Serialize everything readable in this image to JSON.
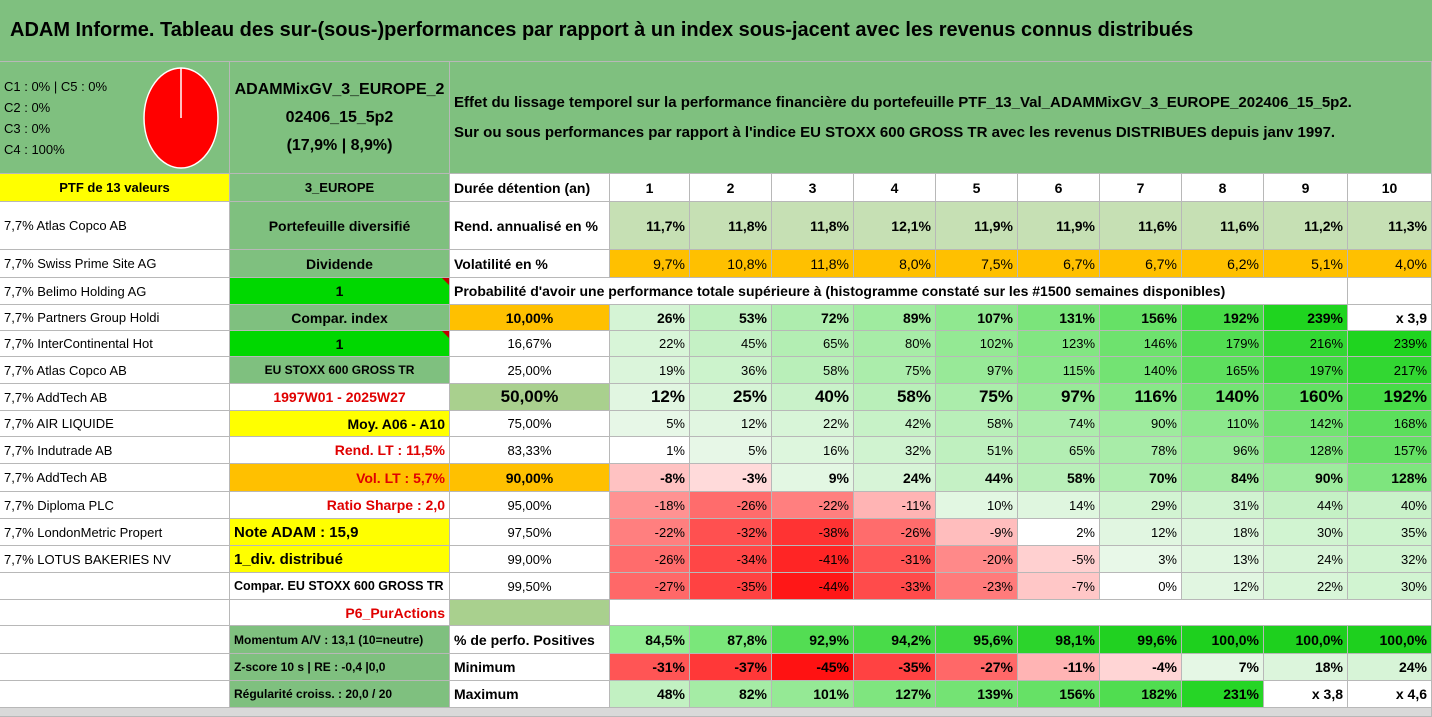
{
  "colors": {
    "green_header": "#7fc07f",
    "yellow": "#ffff00",
    "bright_green": "#00d800",
    "orange": "#ffc000",
    "light_green": "#c6e0b4",
    "pie_red": "#ff0000"
  },
  "title": "ADAM Informe. Tableau des sur-(sous-)performances par rapport à un index sous-jacent avec les revenus connus distribués",
  "info": {
    "class_lines": [
      "C1 : 0% | C5 : 0%",
      "C2 : 0%",
      "C3 : 0%",
      "C4 : 100%"
    ],
    "pie_chart_data": {
      "type": "pie",
      "labels": [
        "C1",
        "C2",
        "C3",
        "C4",
        "C5"
      ],
      "values": [
        0,
        0,
        0,
        100,
        0
      ]
    },
    "portfolio_lines": [
      "ADAMMixGV_3_EUROPE_2",
      "02406_15_5p2",
      "(17,9% | 8,9%)"
    ],
    "description_lines": [
      "Effet du lissage temporel sur la performance financière du portefeuille PTF_13_Val_ADAMMixGV_3_EUROPE_202406_15_5p2.",
      "Sur ou sous performances par rapport à l'indice EU STOXX 600 GROSS TR avec les revenus DISTRIBUES depuis janv 1997."
    ]
  },
  "holdings_header": "PTF de 13 valeurs",
  "holdings": [
    "7,7% Atlas Copco AB",
    "7,7% Swiss Prime Site AG",
    "7,7% Belimo Holding AG",
    "7,7% Partners Group Holdi",
    "7,7% InterContinental Hot",
    "7,7% Atlas Copco AB",
    "7,7% AddTech AB",
    "7,7% AIR LIQUIDE",
    "7,7% Indutrade AB",
    "7,7% AddTech AB",
    "7,7% Diploma PLC",
    "7,7% LondonMetric Propert",
    "7,7% LOTUS BAKERIES NV"
  ],
  "params": {
    "zone": "3_EUROPE",
    "diversification": "Portefeuille diversifié",
    "dividend_label": "Dividende",
    "dividend_value": "1",
    "compar_label": "Compar. index",
    "compar_value": "1",
    "index_name": "EU STOXX 600 GROSS TR",
    "period": "1997W01 - 2025W27",
    "moy": "Moy. A06 - A10",
    "rend_lt": "Rend. LT : 11,5%",
    "vol_lt": "Vol. LT : 5,7%",
    "sharpe": "Ratio Sharpe : 2,0",
    "note_adam": "Note ADAM : 15,9",
    "div_distrib": "1_div. distribué",
    "compar_full": "Compar. EU STOXX 600 GROSS TR",
    "p6": "P6_PurActions",
    "momentum": "Momentum A/V : 13,1 (10=neutre)",
    "zscore": "Z-score 10 s | RE : -0,4 |0,0",
    "regularite": "Régularité croiss. : 20,0 / 20"
  },
  "table": {
    "duration_label": "Durée détention (an)",
    "years": [
      "1",
      "2",
      "3",
      "4",
      "5",
      "6",
      "7",
      "8",
      "9",
      "10"
    ],
    "rend_label": "Rend. annualisé en %",
    "rend": [
      "11,7%",
      "11,8%",
      "11,8%",
      "12,1%",
      "11,9%",
      "11,9%",
      "11,6%",
      "11,6%",
      "11,2%",
      "11,3%"
    ],
    "vol_label": "Volatilité en %",
    "vol": [
      "9,7%",
      "10,8%",
      "11,8%",
      "8,0%",
      "7,5%",
      "6,7%",
      "6,7%",
      "6,2%",
      "5,1%",
      "4,0%"
    ],
    "prob_header": "Probabilité d'avoir une performance totale supérieure à (histogramme constaté sur les #1500 semaines disponibles)",
    "prob_rows": [
      {
        "p": "10,00%",
        "v": [
          "26%",
          "53%",
          "72%",
          "89%",
          "107%",
          "131%",
          "156%",
          "192%",
          "239%",
          "x 3,9"
        ]
      },
      {
        "p": "16,67%",
        "v": [
          "22%",
          "45%",
          "65%",
          "80%",
          "102%",
          "123%",
          "146%",
          "179%",
          "216%",
          "239%"
        ]
      },
      {
        "p": "25,00%",
        "v": [
          "19%",
          "36%",
          "58%",
          "75%",
          "97%",
          "115%",
          "140%",
          "165%",
          "197%",
          "217%"
        ]
      },
      {
        "p": "50,00%",
        "v": [
          "12%",
          "25%",
          "40%",
          "58%",
          "75%",
          "97%",
          "116%",
          "140%",
          "160%",
          "192%"
        ]
      },
      {
        "p": "75,00%",
        "v": [
          "5%",
          "12%",
          "22%",
          "42%",
          "58%",
          "74%",
          "90%",
          "110%",
          "142%",
          "168%"
        ]
      },
      {
        "p": "83,33%",
        "v": [
          "1%",
          "5%",
          "16%",
          "32%",
          "51%",
          "65%",
          "78%",
          "96%",
          "128%",
          "157%"
        ]
      },
      {
        "p": "90,00%",
        "v": [
          "-8%",
          "-3%",
          "9%",
          "24%",
          "44%",
          "58%",
          "70%",
          "84%",
          "90%",
          "128%"
        ]
      },
      {
        "p": "95,00%",
        "v": [
          "-18%",
          "-26%",
          "-22%",
          "-11%",
          "10%",
          "14%",
          "29%",
          "31%",
          "44%",
          "40%"
        ]
      },
      {
        "p": "97,50%",
        "v": [
          "-22%",
          "-32%",
          "-38%",
          "-26%",
          "-9%",
          "2%",
          "12%",
          "18%",
          "30%",
          "35%"
        ]
      },
      {
        "p": "99,00%",
        "v": [
          "-26%",
          "-34%",
          "-41%",
          "-31%",
          "-20%",
          "-5%",
          "3%",
          "13%",
          "24%",
          "32%"
        ]
      },
      {
        "p": "99,50%",
        "v": [
          "-27%",
          "-35%",
          "-44%",
          "-33%",
          "-23%",
          "-7%",
          "0%",
          "12%",
          "22%",
          "30%"
        ]
      }
    ],
    "pos_label": "% de perfo. Positives",
    "pos": [
      "84,5%",
      "87,8%",
      "92,9%",
      "94,2%",
      "95,6%",
      "98,1%",
      "99,6%",
      "100,0%",
      "100,0%",
      "100,0%"
    ],
    "min_label": "Minimum",
    "min": [
      "-31%",
      "-37%",
      "-45%",
      "-35%",
      "-27%",
      "-11%",
      "-4%",
      "7%",
      "18%",
      "24%"
    ],
    "max_label": "Maximum",
    "max": [
      "48%",
      "82%",
      "101%",
      "127%",
      "139%",
      "156%",
      "182%",
      "231%",
      "x 3,8",
      "x 4,6"
    ]
  }
}
